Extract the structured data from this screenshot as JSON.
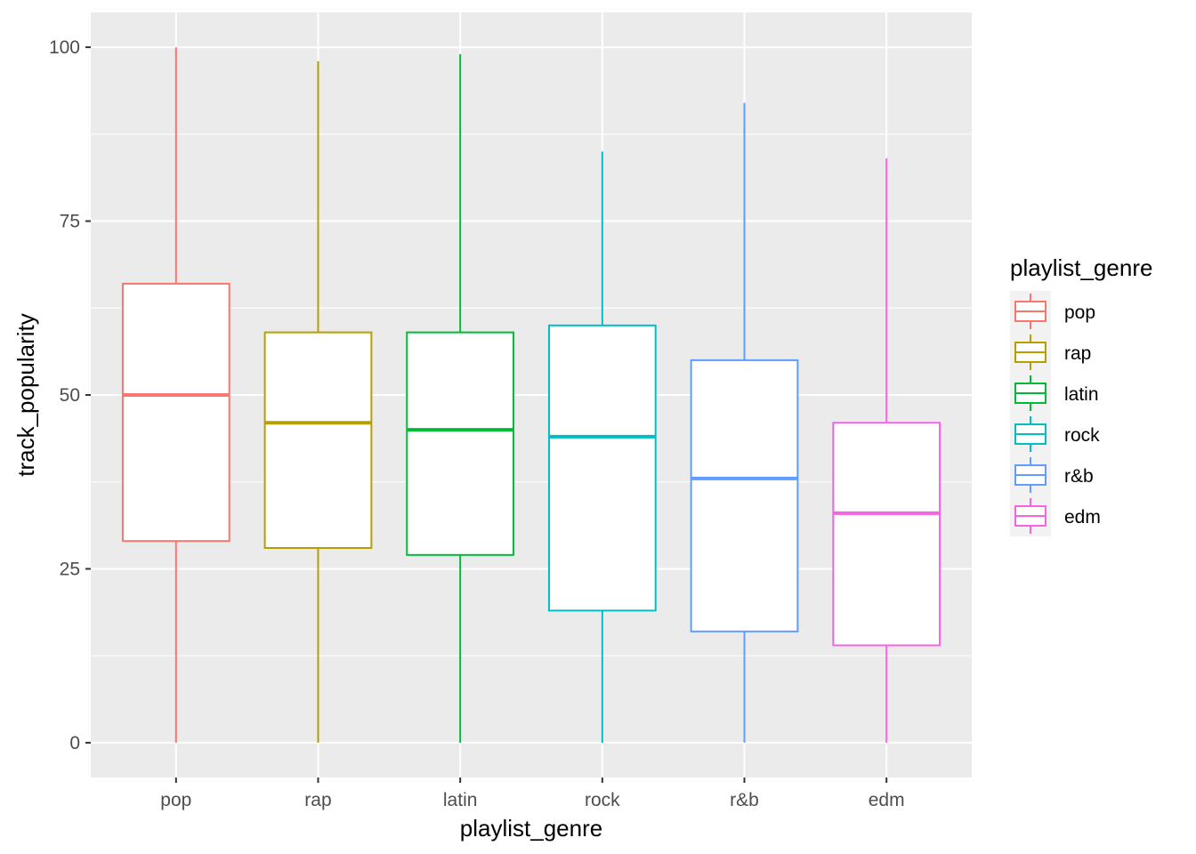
{
  "chart_data": {
    "type": "box",
    "xlabel": "playlist_genre",
    "ylabel": "track_popularity",
    "ylim": [
      -5,
      105
    ],
    "yticks": [
      0,
      25,
      50,
      75,
      100
    ],
    "grid": true,
    "legend": {
      "title": "playlist_genre",
      "placement": "right"
    },
    "categories": [
      "pop",
      "rap",
      "latin",
      "rock",
      "r&b",
      "edm"
    ],
    "colors": [
      "#F8766D",
      "#B79F00",
      "#00BA38",
      "#00BFC4",
      "#619CFF",
      "#F564E3"
    ],
    "boxes": [
      {
        "name": "pop",
        "min": 0,
        "q1": 29,
        "median": 50,
        "q3": 66,
        "max": 100
      },
      {
        "name": "rap",
        "min": 0,
        "q1": 28,
        "median": 46,
        "q3": 59,
        "max": 98
      },
      {
        "name": "latin",
        "min": 0,
        "q1": 27,
        "median": 45,
        "q3": 59,
        "max": 99
      },
      {
        "name": "rock",
        "min": 0,
        "q1": 19,
        "median": 44,
        "q3": 60,
        "max": 85
      },
      {
        "name": "r&b",
        "min": 0,
        "q1": 16,
        "median": 38,
        "q3": 55,
        "max": 92
      },
      {
        "name": "edm",
        "min": 0,
        "q1": 14,
        "median": 33,
        "q3": 46,
        "max": 84
      }
    ]
  }
}
